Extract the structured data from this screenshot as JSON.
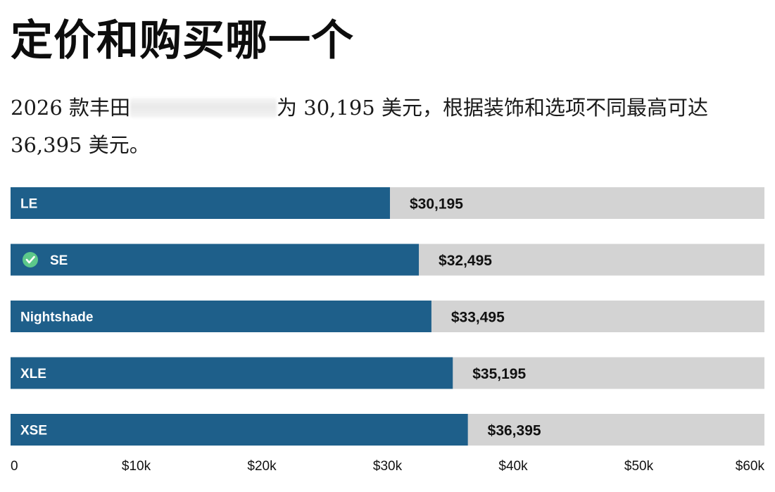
{
  "title": "定价和购买哪一个",
  "subtitle": {
    "prefix": "2026 款丰田",
    "suffix": "为 30,195 美元，根据装饰和选项不同最高可达 36,395 美元。"
  },
  "colors": {
    "bar": "#1e5f8a",
    "track": "#d3d3d3",
    "check": "#5cc88a"
  },
  "chart_data": {
    "type": "bar",
    "orientation": "horizontal",
    "title": "定价和购买哪一个",
    "categories": [
      "LE",
      "SE",
      "Nightshade",
      "XLE",
      "XSE"
    ],
    "values": [
      30195,
      32495,
      33495,
      35195,
      36395
    ],
    "value_labels": [
      "$30,195",
      "$32,495",
      "$33,495",
      "$35,195",
      "$36,395"
    ],
    "recommended": "SE",
    "xlim": [
      0,
      60000
    ],
    "xticks": [
      0,
      10000,
      20000,
      30000,
      40000,
      50000,
      60000
    ],
    "xtick_labels": [
      "0",
      "$10k",
      "$20k",
      "$30k",
      "$40k",
      "$50k",
      "$60k"
    ],
    "xlabel": "",
    "ylabel": "",
    "grid": false
  }
}
